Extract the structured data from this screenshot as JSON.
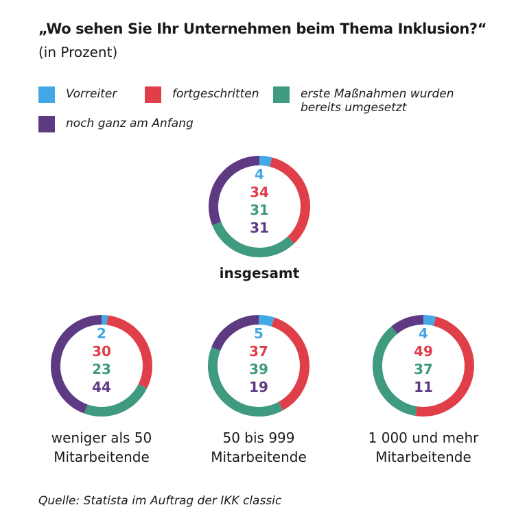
{
  "title": "„Wo sehen Sie Ihr Unternehmen beim Thema Inklusion?“",
  "subtitle": "(in Prozent)",
  "source": "Quelle: Statista im Auftrag der IKK classic",
  "legend": [
    {
      "label": "Vorreiter",
      "color": "#45a8e6"
    },
    {
      "label": "fortgeschritten",
      "color": "#e03e48"
    },
    {
      "label": "erste Maßnahmen wurden bereits umgesetzt",
      "color": "#3f9a80"
    },
    {
      "label": "noch ganz am Anfang",
      "color": "#5e3a82"
    }
  ],
  "chart_data": {
    "type": "pie",
    "series_names": [
      "Vorreiter",
      "fortgeschritten",
      "erste Maßnahmen wurden bereits umgesetzt",
      "noch ganz am Anfang"
    ],
    "colors": [
      "#45a8e6",
      "#e03e48",
      "#3f9a80",
      "#5e3a82"
    ],
    "charts": [
      {
        "name": "insgesamt",
        "caption_lines": [
          "insgesamt"
        ],
        "values": [
          4,
          34,
          31,
          31
        ]
      },
      {
        "name": "weniger als 50 Mitarbeitende",
        "caption_lines": [
          "weniger als 50",
          "Mitarbeitende"
        ],
        "values": [
          2,
          30,
          23,
          44
        ]
      },
      {
        "name": "50 bis 999 Mitarbeitende",
        "caption_lines": [
          "50 bis 999",
          "Mitarbeitende"
        ],
        "values": [
          5,
          37,
          39,
          19
        ]
      },
      {
        "name": "1 000 und mehr Mitarbeitende",
        "caption_lines": [
          "1 000 und mehr",
          "Mitarbeitende"
        ],
        "values": [
          4,
          49,
          37,
          11
        ]
      }
    ]
  }
}
